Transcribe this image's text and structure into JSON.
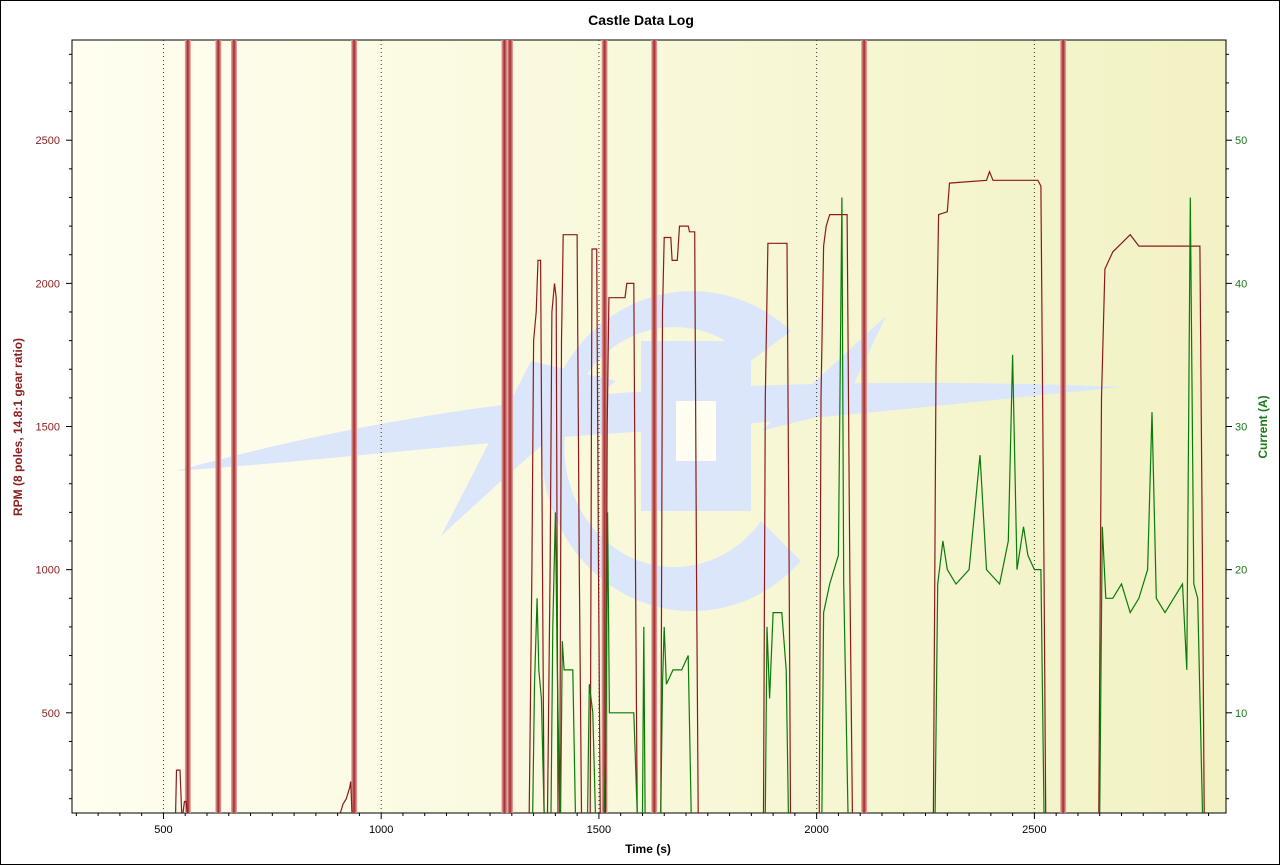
{
  "window": {
    "title": "Castle Data Log"
  },
  "chart_data": {
    "type": "line",
    "title": "Castle Data Log",
    "xlabel": "Time (s)",
    "ylabel_left": "RPM (8 poles, 14.8:1 gear ratio)",
    "ylabel_right": "Current (A)",
    "xlim": [
      290,
      2940
    ],
    "ylim_left": [
      150,
      2850
    ],
    "ylim_right": [
      3,
      57
    ],
    "x_ticks": [
      500,
      1000,
      1500,
      2000,
      2500
    ],
    "y_left_ticks": [
      500,
      1000,
      1500,
      2000,
      2500
    ],
    "y_right_ticks": [
      10,
      20,
      30,
      40,
      50
    ],
    "grid": "vertical dotted at major x ticks",
    "colors": {
      "rpm": "#8b1a1a",
      "current": "#0a7a0a",
      "marker": "#b03030",
      "axis_left": "#8b2020",
      "axis_right": "#1a7a1a",
      "background_from": "#fffef0",
      "background_to": "#f2f2c4",
      "logo": "#dce6fb"
    },
    "event_markers_x": [
      556,
      626,
      662,
      938,
      1283,
      1296,
      1513,
      1627,
      2109,
      2566
    ],
    "series": [
      {
        "name": "RPM (8 poles, 14.8:1 gear ratio)",
        "axis": "left",
        "color": "#8b1a1a",
        "segments": [
          [
            [
              528,
              150
            ],
            [
              530,
              300
            ],
            [
              538,
              300
            ],
            [
              542,
              150
            ]
          ],
          [
            [
              545,
              150
            ],
            [
              548,
              190
            ],
            [
              552,
              190
            ],
            [
              555,
              150
            ]
          ],
          [
            [
              906,
              150
            ],
            [
              912,
              180
            ],
            [
              920,
              200
            ],
            [
              928,
              240
            ],
            [
              930,
              260
            ],
            [
              933,
              150
            ]
          ],
          [
            [
              1340,
              150
            ],
            [
              1346,
              1000
            ],
            [
              1350,
              1800
            ],
            [
              1356,
              1900
            ],
            [
              1360,
              2080
            ],
            [
              1366,
              2080
            ],
            [
              1370,
              1100
            ],
            [
              1374,
              150
            ]
          ],
          [
            [
              1382,
              150
            ],
            [
              1388,
              1000
            ],
            [
              1392,
              1900
            ],
            [
              1398,
              2000
            ],
            [
              1402,
              1950
            ],
            [
              1406,
              150
            ]
          ],
          [
            [
              1410,
              150
            ],
            [
              1414,
              1800
            ],
            [
              1418,
              2170
            ],
            [
              1450,
              2170
            ],
            [
              1455,
              1000
            ],
            [
              1460,
              150
            ]
          ],
          [
            [
              1480,
              150
            ],
            [
              1484,
              2120
            ],
            [
              1495,
              2120
            ],
            [
              1499,
              1000
            ],
            [
              1503,
              150
            ]
          ],
          [
            [
              1515,
              150
            ],
            [
              1519,
              1500
            ],
            [
              1523,
              1950
            ],
            [
              1560,
              1950
            ],
            [
              1564,
              2000
            ],
            [
              1580,
              2000
            ],
            [
              1584,
              1000
            ],
            [
              1588,
              150
            ]
          ],
          [
            [
              1642,
              150
            ],
            [
              1646,
              1900
            ],
            [
              1650,
              2160
            ],
            [
              1665,
              2160
            ],
            [
              1668,
              2080
            ],
            [
              1680,
              2080
            ],
            [
              1685,
              2200
            ],
            [
              1705,
              2200
            ],
            [
              1708,
              2180
            ],
            [
              1720,
              2180
            ],
            [
              1724,
              1000
            ],
            [
              1728,
              150
            ]
          ],
          [
            [
              1878,
              150
            ],
            [
              1882,
              1600
            ],
            [
              1888,
              2140
            ],
            [
              1932,
              2140
            ],
            [
              1936,
              1200
            ],
            [
              1940,
              150
            ]
          ],
          [
            [
              2006,
              150
            ],
            [
              2010,
              1600
            ],
            [
              2016,
              2130
            ],
            [
              2022,
              2200
            ],
            [
              2030,
              2240
            ],
            [
              2070,
              2240
            ],
            [
              2076,
              1000
            ],
            [
              2082,
              150
            ]
          ],
          [
            [
              2268,
              150
            ],
            [
              2274,
              1700
            ],
            [
              2280,
              2240
            ],
            [
              2300,
              2250
            ],
            [
              2305,
              2350
            ],
            [
              2390,
              2360
            ],
            [
              2397,
              2390
            ],
            [
              2405,
              2360
            ],
            [
              2500,
              2360
            ],
            [
              2508,
              2360
            ],
            [
              2515,
              2340
            ],
            [
              2522,
              1000
            ],
            [
              2526,
              150
            ]
          ],
          [
            [
              2648,
              150
            ],
            [
              2654,
              1600
            ],
            [
              2662,
              2050
            ],
            [
              2680,
              2110
            ],
            [
              2700,
              2140
            ],
            [
              2720,
              2170
            ],
            [
              2740,
              2130
            ],
            [
              2880,
              2130
            ],
            [
              2886,
              1000
            ],
            [
              2890,
              150
            ]
          ]
        ]
      },
      {
        "name": "Current (A)",
        "axis": "right",
        "color": "#0a7a0a",
        "segments": [
          [
            [
              1348,
              3
            ],
            [
              1352,
              12
            ],
            [
              1358,
              18
            ],
            [
              1362,
              13
            ],
            [
              1368,
              11
            ],
            [
              1374,
              3
            ]
          ],
          [
            [
              1390,
              3
            ],
            [
              1394,
              16
            ],
            [
              1400,
              24
            ],
            [
              1404,
              14
            ],
            [
              1410,
              3
            ]
          ],
          [
            [
              1412,
              3
            ],
            [
              1416,
              15
            ],
            [
              1420,
              13
            ],
            [
              1440,
              13
            ],
            [
              1446,
              3
            ]
          ],
          [
            [
              1474,
              3
            ],
            [
              1478,
              12
            ],
            [
              1486,
              10
            ],
            [
              1492,
              3
            ]
          ],
          [
            [
              1512,
              3
            ],
            [
              1516,
              8
            ],
            [
              1520,
              24
            ],
            [
              1524,
              10
            ],
            [
              1545,
              10
            ],
            [
              1560,
              10
            ],
            [
              1580,
              10
            ],
            [
              1588,
              3
            ]
          ],
          [
            [
              1600,
              3
            ],
            [
              1603,
              16
            ],
            [
              1606,
              3
            ]
          ],
          [
            [
              1642,
              3
            ],
            [
              1646,
              12
            ],
            [
              1650,
              16
            ],
            [
              1655,
              12
            ],
            [
              1670,
              13
            ],
            [
              1690,
              13
            ],
            [
              1705,
              14
            ],
            [
              1712,
              3
            ]
          ],
          [
            [
              1882,
              3
            ],
            [
              1886,
              16
            ],
            [
              1892,
              11
            ],
            [
              1900,
              17
            ],
            [
              1920,
              17
            ],
            [
              1930,
              13
            ],
            [
              1935,
              3
            ]
          ],
          [
            [
              2012,
              3
            ],
            [
              2016,
              17
            ],
            [
              2030,
              19
            ],
            [
              2050,
              21
            ],
            [
              2058,
              46
            ],
            [
              2062,
              19
            ],
            [
              2072,
              3
            ]
          ],
          [
            [
              2272,
              3
            ],
            [
              2278,
              19
            ],
            [
              2290,
              22
            ],
            [
              2300,
              20
            ],
            [
              2320,
              19
            ],
            [
              2350,
              20
            ],
            [
              2375,
              28
            ],
            [
              2390,
              20
            ],
            [
              2420,
              19
            ],
            [
              2440,
              22
            ],
            [
              2450,
              35
            ],
            [
              2460,
              20
            ],
            [
              2475,
              23
            ],
            [
              2485,
              21
            ],
            [
              2500,
              20
            ],
            [
              2515,
              20
            ],
            [
              2522,
              3
            ]
          ],
          [
            [
              2650,
              3
            ],
            [
              2656,
              23
            ],
            [
              2664,
              18
            ],
            [
              2680,
              18
            ],
            [
              2700,
              19
            ],
            [
              2720,
              17
            ],
            [
              2740,
              18
            ],
            [
              2760,
              20
            ],
            [
              2770,
              31
            ],
            [
              2780,
              18
            ],
            [
              2800,
              17
            ],
            [
              2820,
              18
            ],
            [
              2840,
              19
            ],
            [
              2850,
              13
            ],
            [
              2858,
              46
            ],
            [
              2866,
              19
            ],
            [
              2875,
              18
            ],
            [
              2886,
              3
            ]
          ]
        ]
      }
    ]
  }
}
